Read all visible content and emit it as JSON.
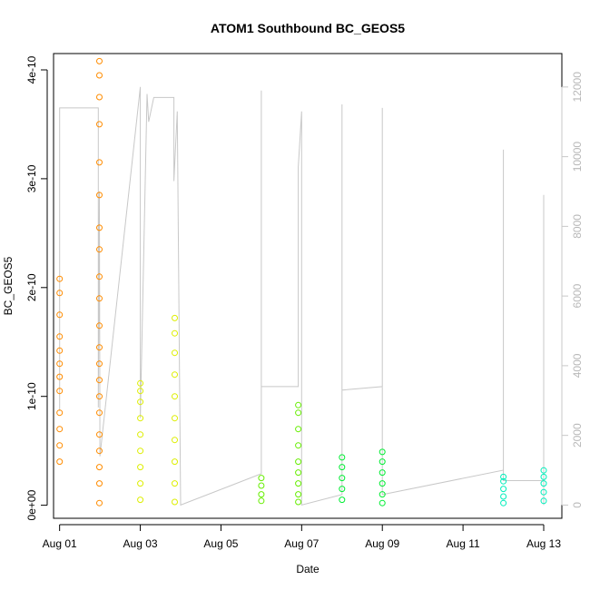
{
  "chart_data": {
    "type": "scatter",
    "title": "ATOM1 Southbound BC_GEOS5",
    "xlabel": "Date",
    "ylabel": "BC_GEOS5",
    "x_ticks": [
      "Aug 01",
      "Aug 03",
      "Aug 05",
      "Aug 07",
      "Aug 09",
      "Aug 11",
      "Aug 13"
    ],
    "xlim": [
      "2016-07-31T20:24",
      "2016-08-13T10:48"
    ],
    "y_ticks": [
      "0e+00",
      "1e-10",
      "2e-10",
      "3e-10",
      "4e-10"
    ],
    "ylim": [
      -1.2e-11,
      4.15e-10
    ],
    "right_axis": {
      "ticks": [
        "0",
        "2000",
        "4000",
        "6000",
        "8000",
        "10000",
        "12000"
      ],
      "ylim": [
        -380,
        12960
      ],
      "color": "#c8c8c8"
    },
    "grid": false,
    "series": [
      {
        "color": "#ff8c00",
        "points": [
          [
            "2016-08-01T00:00",
            4e-11
          ],
          [
            "2016-08-01T00:00",
            5.5e-11
          ],
          [
            "2016-08-01T00:00",
            7e-11
          ],
          [
            "2016-08-01T00:00",
            8.5e-11
          ],
          [
            "2016-08-01T00:00",
            1.05e-10
          ],
          [
            "2016-08-01T00:00",
            1.18e-10
          ],
          [
            "2016-08-01T00:00",
            1.3e-10
          ],
          [
            "2016-08-01T00:00",
            1.42e-10
          ],
          [
            "2016-08-01T00:00",
            1.55e-10
          ],
          [
            "2016-08-01T00:00",
            1.75e-10
          ],
          [
            "2016-08-01T00:00",
            1.95e-10
          ],
          [
            "2016-08-01T00:00",
            2.08e-10
          ],
          [
            "2016-08-01T23:40",
            2e-12
          ],
          [
            "2016-08-01T23:40",
            2e-11
          ],
          [
            "2016-08-01T23:40",
            3.5e-11
          ],
          [
            "2016-08-01T23:40",
            5e-11
          ],
          [
            "2016-08-01T23:40",
            6.5e-11
          ],
          [
            "2016-08-01T23:40",
            8.5e-11
          ],
          [
            "2016-08-01T23:40",
            1e-10
          ],
          [
            "2016-08-01T23:40",
            1.15e-10
          ],
          [
            "2016-08-01T23:40",
            1.3e-10
          ],
          [
            "2016-08-01T23:40",
            1.45e-10
          ],
          [
            "2016-08-01T23:40",
            1.65e-10
          ],
          [
            "2016-08-01T23:40",
            1.9e-10
          ],
          [
            "2016-08-01T23:40",
            2.1e-10
          ],
          [
            "2016-08-01T23:40",
            2.35e-10
          ],
          [
            "2016-08-01T23:40",
            2.55e-10
          ],
          [
            "2016-08-01T23:40",
            2.85e-10
          ],
          [
            "2016-08-01T23:40",
            3.15e-10
          ],
          [
            "2016-08-01T23:40",
            3.5e-10
          ],
          [
            "2016-08-01T23:40",
            3.75e-10
          ],
          [
            "2016-08-01T23:40",
            3.95e-10
          ],
          [
            "2016-08-01T23:40",
            4.08e-10
          ]
        ]
      },
      {
        "color": "#ddee00",
        "points": [
          [
            "2016-08-03T00:00",
            5e-12
          ],
          [
            "2016-08-03T00:00",
            2e-11
          ],
          [
            "2016-08-03T00:00",
            3.5e-11
          ],
          [
            "2016-08-03T00:00",
            5e-11
          ],
          [
            "2016-08-03T00:00",
            6.5e-11
          ],
          [
            "2016-08-03T00:00",
            8e-11
          ],
          [
            "2016-08-03T00:00",
            9.5e-11
          ],
          [
            "2016-08-03T00:00",
            1.05e-10
          ],
          [
            "2016-08-03T00:00",
            1.12e-10
          ],
          [
            "2016-08-03T20:30",
            3e-12
          ],
          [
            "2016-08-03T20:30",
            2e-11
          ],
          [
            "2016-08-03T20:30",
            4e-11
          ],
          [
            "2016-08-03T20:30",
            6e-11
          ],
          [
            "2016-08-03T20:30",
            8e-11
          ],
          [
            "2016-08-03T20:30",
            1e-10
          ],
          [
            "2016-08-03T20:30",
            1.2e-10
          ],
          [
            "2016-08-03T20:30",
            1.4e-10
          ],
          [
            "2016-08-03T20:30",
            1.58e-10
          ],
          [
            "2016-08-03T20:30",
            1.72e-10
          ]
        ]
      },
      {
        "color": "#66ee00",
        "points": [
          [
            "2016-08-06T00:00",
            4e-12
          ],
          [
            "2016-08-06T00:00",
            1e-11
          ],
          [
            "2016-08-06T00:00",
            1.8e-11
          ],
          [
            "2016-08-06T00:00",
            2.5e-11
          ],
          [
            "2016-08-06T22:00",
            3e-12
          ],
          [
            "2016-08-06T22:00",
            1e-11
          ],
          [
            "2016-08-06T22:00",
            2e-11
          ],
          [
            "2016-08-06T22:00",
            3e-11
          ],
          [
            "2016-08-06T22:00",
            4e-11
          ],
          [
            "2016-08-06T22:00",
            5.5e-11
          ],
          [
            "2016-08-06T22:00",
            7e-11
          ],
          [
            "2016-08-06T22:00",
            8.5e-11
          ],
          [
            "2016-08-06T22:00",
            9.2e-11
          ]
        ]
      },
      {
        "color": "#00ee33",
        "points": [
          [
            "2016-08-08T00:00",
            5e-12
          ],
          [
            "2016-08-08T00:00",
            1.5e-11
          ],
          [
            "2016-08-08T00:00",
            2.5e-11
          ],
          [
            "2016-08-08T00:00",
            3.5e-11
          ],
          [
            "2016-08-08T00:00",
            4.4e-11
          ],
          [
            "2016-08-09T00:00",
            2e-12
          ],
          [
            "2016-08-09T00:00",
            1e-11
          ],
          [
            "2016-08-09T00:00",
            2e-11
          ],
          [
            "2016-08-09T00:00",
            3e-11
          ],
          [
            "2016-08-09T00:00",
            4e-11
          ],
          [
            "2016-08-09T00:00",
            4.9e-11
          ]
        ]
      },
      {
        "color": "#00eebb",
        "points": [
          [
            "2016-08-12T00:00",
            2e-12
          ],
          [
            "2016-08-12T00:00",
            8e-12
          ],
          [
            "2016-08-12T00:00",
            1.5e-11
          ],
          [
            "2016-08-12T00:00",
            2.2e-11
          ],
          [
            "2016-08-12T00:00",
            2.6e-11
          ],
          [
            "2016-08-13T00:00",
            4e-12
          ],
          [
            "2016-08-13T00:00",
            1.2e-11
          ],
          [
            "2016-08-13T00:00",
            2e-11
          ],
          [
            "2016-08-13T00:00",
            2.6e-11
          ],
          [
            "2016-08-13T00:00",
            3.2e-11
          ]
        ]
      }
    ],
    "altitude_line": {
      "axis": "right",
      "color": "#c8c8c8",
      "points": [
        [
          "2016-08-01T00:00",
          2700
        ],
        [
          "2016-08-01T00:00",
          11400
        ],
        [
          "2016-08-01T23:00",
          11400
        ],
        [
          "2016-08-01T23:00",
          2800
        ],
        [
          "2016-08-01T23:40",
          9000
        ],
        [
          "2016-08-02T00:00",
          1400
        ],
        [
          "2016-08-03T00:00",
          12000
        ],
        [
          "2016-08-03T00:00",
          2500
        ],
        [
          "2016-08-03T04:00",
          11800
        ],
        [
          "2016-08-03T05:00",
          11000
        ],
        [
          "2016-08-03T08:00",
          11700
        ],
        [
          "2016-08-03T20:00",
          11700
        ],
        [
          "2016-08-03T20:00",
          9300
        ],
        [
          "2016-08-03T22:00",
          11300
        ],
        [
          "2016-08-04T00:00",
          0
        ],
        [
          "2016-08-06T00:00",
          900
        ],
        [
          "2016-08-06T00:00",
          11900
        ],
        [
          "2016-08-06T00:00",
          3400
        ],
        [
          "2016-08-06T22:00",
          3400
        ],
        [
          "2016-08-06T22:00",
          9700
        ],
        [
          "2016-08-07T00:00",
          11300
        ],
        [
          "2016-08-07T00:00",
          0
        ],
        [
          "2016-08-08T00:00",
          300
        ],
        [
          "2016-08-08T00:00",
          11500
        ],
        [
          "2016-08-08T00:00",
          3300
        ],
        [
          "2016-08-09T00:00",
          3400
        ],
        [
          "2016-08-09T00:00",
          11400
        ],
        [
          "2016-08-09T00:00",
          300
        ],
        [
          "2016-08-12T00:00",
          1000
        ],
        [
          "2016-08-12T00:00",
          10200
        ],
        [
          "2016-08-12T00:00",
          700
        ],
        [
          "2016-08-13T00:00",
          700
        ],
        [
          "2016-08-13T00:00",
          8900
        ],
        [
          "2016-08-13T00:00",
          0
        ]
      ]
    }
  }
}
